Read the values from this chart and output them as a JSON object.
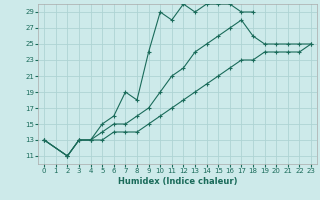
{
  "xlabel": "Humidex (Indice chaleur)",
  "bg_color": "#cdeaea",
  "grid_color": "#aed4d4",
  "line_color": "#1a6b5a",
  "xlim": [
    -0.5,
    23.5
  ],
  "ylim": [
    10,
    30
  ],
  "yticks": [
    11,
    13,
    15,
    17,
    19,
    21,
    23,
    25,
    27,
    29
  ],
  "xticks": [
    0,
    1,
    2,
    3,
    4,
    5,
    6,
    7,
    8,
    9,
    10,
    11,
    12,
    13,
    14,
    15,
    16,
    17,
    18,
    19,
    20,
    21,
    22,
    23
  ],
  "line1_x": [
    0,
    2,
    3,
    4,
    5,
    6,
    7,
    8,
    9,
    10,
    11,
    12,
    13,
    14,
    15,
    16,
    17,
    18
  ],
  "line1_y": [
    13,
    11,
    13,
    13,
    15,
    16,
    19,
    18,
    24,
    29,
    28,
    30,
    29,
    30,
    30,
    30,
    29,
    29
  ],
  "line2_x": [
    0,
    2,
    3,
    4,
    5,
    6,
    7,
    8,
    9,
    10,
    11,
    12,
    13,
    14,
    15,
    16,
    17,
    18,
    19,
    20,
    21,
    22,
    23
  ],
  "line2_y": [
    13,
    11,
    13,
    13,
    14,
    15,
    15,
    16,
    17,
    19,
    21,
    22,
    24,
    25,
    26,
    27,
    28,
    26,
    25,
    25,
    25,
    25,
    25
  ],
  "line3_x": [
    0,
    2,
    3,
    4,
    5,
    6,
    7,
    8,
    9,
    10,
    11,
    12,
    13,
    14,
    15,
    16,
    17,
    18,
    19,
    20,
    21,
    22,
    23
  ],
  "line3_y": [
    13,
    11,
    13,
    13,
    13,
    14,
    14,
    14,
    15,
    16,
    17,
    18,
    19,
    20,
    21,
    22,
    23,
    23,
    24,
    24,
    24,
    24,
    25
  ]
}
